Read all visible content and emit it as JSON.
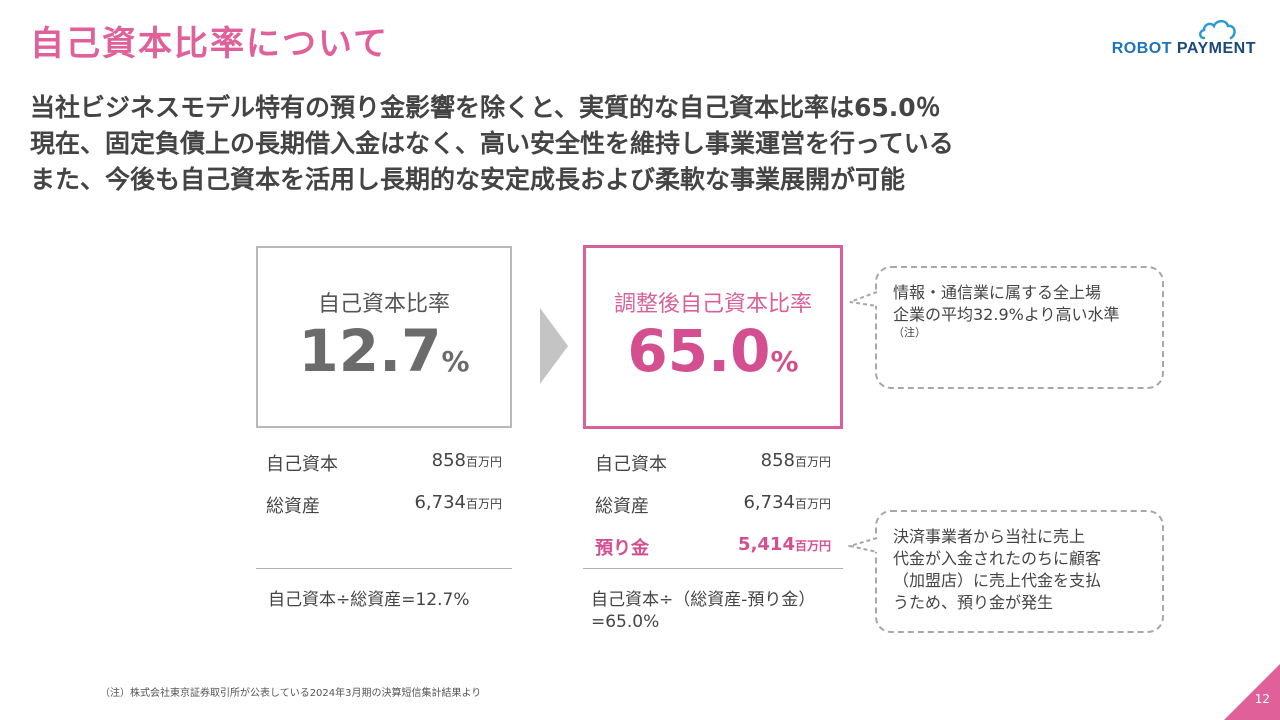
{
  "header": {
    "title": "自己資本比率について",
    "logo_robot": "ROBOT",
    "logo_payment": "PAYMENT"
  },
  "lead": [
    "当社ビジネスモデル特有の預り金影響を除くと、実質的な自己資本比率は65.0％",
    "現在、固定負債上の長期借入金はなく、高い安全性を維持し事業運営を行っている",
    "また、今後も自己資本を活用し長期的な安定成長および柔軟な事業展開が可能"
  ],
  "left_panel": {
    "label": "自己資本比率",
    "value": "12.7",
    "unit": "%",
    "rows": [
      {
        "label": "自己資本",
        "value": "858",
        "unit": "百万円"
      },
      {
        "label": "総資産",
        "value": "6,734",
        "unit": "百万円"
      }
    ],
    "formula": "自己資本÷総資産=12.7%"
  },
  "right_panel": {
    "label": "調整後自己資本比率",
    "value": "65.0",
    "unit": "%",
    "rows": [
      {
        "label": "自己資本",
        "value": "858",
        "unit": "百万円"
      },
      {
        "label": "総資産",
        "value": "6,734",
        "unit": "百万円"
      },
      {
        "label": "預り金",
        "value": "5,414",
        "unit": "百万円"
      }
    ],
    "formula_line1": "自己資本÷（総資産-預り金）",
    "formula_line2": "=65.0%"
  },
  "callouts": {
    "top_line1": "情報・通信業に属する全上場",
    "top_line2": "企業の平均32.9%より高い水準",
    "top_note": "（注）",
    "bottom_line1": "決済事業者から当社に売上",
    "bottom_line2": "代金が入金されたのちに顧客",
    "bottom_line3": "（加盟店）に売上代金を支払",
    "bottom_line4": "うため、預り金が発生"
  },
  "footnote": "（注）株式会社東京証券取引所が公表している2024年3月期の決算短信集計結果より",
  "page_number": "12",
  "colors": {
    "accent": "#d9609a",
    "title": "#e0609a",
    "gray_box": "#b8b8b8",
    "logo_blue": "#1f73b7"
  }
}
